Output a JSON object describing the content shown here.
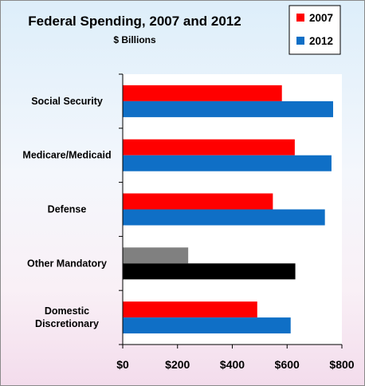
{
  "chart_data": {
    "type": "bar",
    "orientation": "horizontal",
    "title": "Federal Spending, 2007 and 2012",
    "subtitle": "$ Billions",
    "categories": [
      "Social Security",
      "Medicare/Medicaid",
      "Defense",
      "Other Mandatory",
      "Domestic Discretionary"
    ],
    "series": [
      {
        "name": "2007",
        "color": "#ff0000",
        "values": [
          581,
          628,
          548,
          239,
          491
        ]
      },
      {
        "name": "2012",
        "color": "#0f6fc6",
        "values": [
          768,
          762,
          738,
          630,
          613
        ]
      }
    ],
    "highlight": {
      "category": "Other Mandatory",
      "colors": {
        "2007": "#808080",
        "2012": "#000000"
      }
    },
    "xlim": [
      0,
      800
    ],
    "xticks": [
      0,
      200,
      400,
      600,
      800
    ],
    "xtick_labels": [
      "$0",
      "$200",
      "$400",
      "$600",
      "$800"
    ],
    "xlabel": "",
    "ylabel": "",
    "grid": false,
    "legend": "top-right"
  }
}
